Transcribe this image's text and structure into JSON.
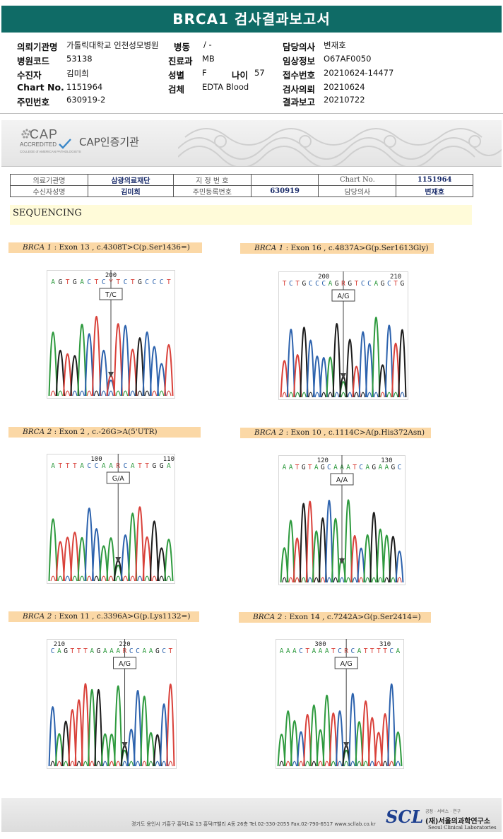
{
  "report": {
    "title": "BRCA1 검사결과보고서"
  },
  "info": [
    {
      "key": "의뢰기관명",
      "value": "가톨릭대학교 인천성모병원"
    },
    {
      "key": "병동",
      "value": "/ -"
    },
    {
      "key": "담당의사",
      "value": "변재호"
    },
    {
      "key": "병원코드",
      "value": "53138"
    },
    {
      "key": "진료과",
      "value": "MB"
    },
    {
      "key": "임상정보",
      "value": "O67AF0050"
    },
    {
      "key": "수진자",
      "value": "김미희"
    },
    {
      "key": "성별",
      "value": "F"
    },
    {
      "key": "나이",
      "value": "57"
    },
    {
      "key": "접수번호",
      "value": "20210624-14477"
    },
    {
      "key": "Chart No.",
      "value": "1151964"
    },
    {
      "key": "검체",
      "value": "EDTA Blood"
    },
    {
      "key": "검사의뢰",
      "value": "20210624"
    },
    {
      "key": "주민번호",
      "value": "630919-2"
    },
    {
      "key": "결과보고",
      "value": "20210722"
    }
  ],
  "cap": {
    "logo_text": "CAP",
    "accredited": "ACCREDITED",
    "college": "COLLEGE of AMERICAN PATHOLOGISTS",
    "title": "CAP인증기관"
  },
  "header_table": {
    "row1": [
      "의료기관명",
      "삼광의료재단",
      "지 정 번 호",
      "",
      "Chart No.",
      "1151964"
    ],
    "row2": [
      "수신자성명",
      "김미희",
      "주민등록번호",
      "630919",
      "담당의사",
      "변재호"
    ]
  },
  "section_title": "SEQUENCING",
  "colors": {
    "A": "#2e9a3e",
    "T": "#d9413a",
    "G": "#1c1c1c",
    "C": "#2c62ad",
    "teal": "#0f6b66",
    "label_bg": "#fbd8a6"
  },
  "variants": [
    {
      "gene": "BRCA 1",
      "desc": " : Exon 13 , c.4308T>C(p.Ser1436=)",
      "seq": "AGTGACTCYTCTGCCCT",
      "pos_labels": [
        {
          "text": "200",
          "idx": 8
        }
      ],
      "call": "T/C",
      "het": 8
    },
    {
      "gene": "BRCA 1",
      "desc": " : Exon 16 , c.4837A>G(p.Ser1613Gly)",
      "seq": "TCTGCCCAGRGTCCAGCTG",
      "pos_labels": [
        {
          "text": "200",
          "idx": 6
        },
        {
          "text": "210",
          "idx": 17
        }
      ],
      "call": "A/G",
      "het": 9
    },
    {
      "gene": "BRCA 2",
      "desc": " : Exon 2 , c.-26G>A(5'UTR)",
      "seq": "ATTTACCAARCATTGGA",
      "pos_labels": [
        {
          "text": "100",
          "idx": 6
        },
        {
          "text": "110",
          "idx": 16
        }
      ],
      "call": "G/A",
      "het": 9
    },
    {
      "gene": "BRCA 2",
      "desc": " : Exon 10 , c.1114C>A(p.His372Asn)",
      "seq": "AATGTAGCAAATCAGAAGC",
      "pos_labels": [
        {
          "text": "120",
          "idx": 6
        },
        {
          "text": "130",
          "idx": 16
        }
      ],
      "call": "A/A",
      "het": 9
    },
    {
      "gene": "BRCA 2",
      "desc": " : Exon 11 , c.3396A>G(p.Lys1132=)",
      "seq": "CAGTTTAGAAARCCAAGCT",
      "pos_labels": [
        {
          "text": "210",
          "idx": 1
        },
        {
          "text": "220",
          "idx": 11
        }
      ],
      "call": "A/G",
      "het": 11
    },
    {
      "gene": "BRCA 2",
      "desc": " : Exon 14 , c.7242A>G(p.Ser2414=)",
      "seq": "AAACTAAATCRCATTTTCA",
      "pos_labels": [
        {
          "text": "300",
          "idx": 6
        },
        {
          "text": "310",
          "idx": 16
        }
      ],
      "call": "A/G",
      "het": 10
    }
  ],
  "footer": {
    "address": "경기도 용인시 기흥구 흥덕1로 13 흥덕IT밸리 A동 26층  Tel.02-330-2055  Fax.02-790-6517  www.scllab.co.kr",
    "logo": "SCL",
    "small": "공정 · 서비스 · 연구",
    "name": "(재)서울의과학연구소",
    "eng": "Seoul Clinical Laboratories"
  }
}
